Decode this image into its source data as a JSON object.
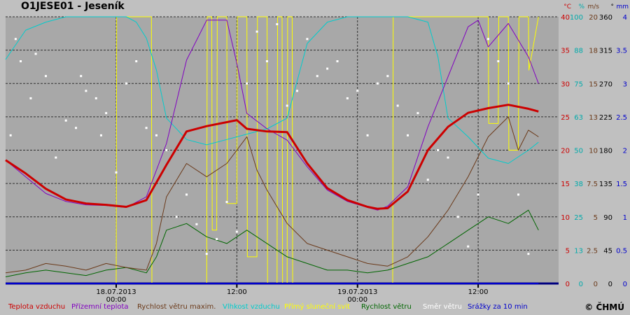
{
  "title": "O1JESE01 - Jeseník",
  "copyright": "© ČHMÚ",
  "chart_data": {
    "type": "line",
    "x_ticks": [
      {
        "t": 11,
        "label1": "18.07.2013",
        "label2": "00:00"
      },
      {
        "t": 23,
        "label1": "12:00",
        "label2": ""
      },
      {
        "t": 35,
        "label1": "19.07.2013",
        "label2": "00:00"
      },
      {
        "t": 47,
        "label1": "12:00",
        "label2": ""
      }
    ],
    "xlim": [
      0,
      55
    ],
    "axes": [
      {
        "unit": "°C",
        "color": "#cc0000",
        "ticks": [
          "0",
          "5",
          "10",
          "15",
          "20",
          "25",
          "30",
          "35",
          "40"
        ]
      },
      {
        "unit": "%",
        "color": "#00aaaa",
        "ticks": [
          "0",
          "13",
          "25",
          "38",
          "50",
          "63",
          "75",
          "88",
          "100"
        ]
      },
      {
        "unit": "m/s",
        "color": "#6b3a1a",
        "ticks": [
          "0",
          "2.5",
          "5",
          "7.5",
          "10",
          "13",
          "15",
          "18",
          "20"
        ]
      },
      {
        "unit": "°",
        "color": "#000000",
        "ticks": [
          "0",
          "45",
          "90",
          "135",
          "180",
          "225",
          "270",
          "315",
          "360"
        ]
      },
      {
        "unit": "mm",
        "color": "#0000cc",
        "ticks": [
          "0",
          "0.5",
          "1",
          "1.5",
          "2",
          "2.5",
          "3",
          "3.5",
          "4"
        ]
      }
    ],
    "series": [
      {
        "name": "Teplota vzduchu",
        "color": "#cc0000",
        "axis": "°C",
        "x": [
          0,
          2,
          4,
          6,
          8,
          10,
          12,
          14,
          16,
          18,
          20,
          22,
          23,
          24,
          26,
          28,
          30,
          32,
          34,
          36,
          37,
          38,
          40,
          42,
          44,
          46,
          48,
          50,
          52,
          53
        ],
        "y": [
          18.5,
          16.5,
          14.2,
          12.6,
          12.0,
          11.8,
          11.5,
          12.5,
          17.8,
          22.8,
          23.6,
          24.2,
          24.5,
          23.2,
          22.8,
          22.7,
          18.0,
          14.3,
          12.5,
          11.5,
          11.2,
          11.3,
          13.8,
          20.0,
          23.5,
          25.6,
          26.3,
          26.8,
          26.2,
          25.8
        ]
      },
      {
        "name": "Přízemní teplota",
        "color": "#8000c0",
        "axis": "°C",
        "x": [
          0,
          2,
          4,
          6,
          8,
          10,
          12,
          14,
          16,
          18,
          20,
          22,
          23,
          24,
          26,
          28,
          30,
          32,
          34,
          36,
          37,
          38,
          40,
          42,
          44,
          46,
          47,
          48,
          50,
          52,
          53
        ],
        "y": [
          18.5,
          16.0,
          13.5,
          12.3,
          11.8,
          11.7,
          11.4,
          13.0,
          21.0,
          33.5,
          39.5,
          39.5,
          33.0,
          25.5,
          23.2,
          21.5,
          17.5,
          14.0,
          12.3,
          11.4,
          11.0,
          11.6,
          14.5,
          23.5,
          31.0,
          38.5,
          39.5,
          35.5,
          39.0,
          34.0,
          30.0
        ]
      },
      {
        "name": "Rychlost větru maxim.",
        "color": "#6b3a1a",
        "axis": "m/s",
        "x": [
          0,
          2,
          4,
          6,
          8,
          10,
          12,
          14,
          15,
          16,
          18,
          20,
          22,
          24,
          25,
          26,
          28,
          30,
          32,
          34,
          36,
          38,
          40,
          42,
          44,
          46,
          48,
          50,
          51,
          52,
          53
        ],
        "y": [
          0.8,
          1.0,
          1.5,
          1.3,
          1.0,
          1.5,
          1.2,
          1.0,
          3.0,
          6.5,
          9.0,
          8.0,
          9.0,
          11.0,
          8.5,
          7.0,
          4.5,
          3.0,
          2.5,
          2.0,
          1.5,
          1.3,
          2.0,
          3.5,
          5.5,
          8.0,
          11.0,
          12.5,
          10.0,
          11.5,
          11.0
        ]
      },
      {
        "name": "Vlhkost vzduchu",
        "color": "#00cccc",
        "axis": "%",
        "x": [
          0,
          2,
          4,
          6,
          8,
          10,
          12,
          13,
          14,
          15,
          16,
          18,
          20,
          22,
          24,
          26,
          28,
          30,
          32,
          34,
          36,
          38,
          40,
          42,
          43,
          44,
          46,
          48,
          50,
          52,
          53
        ],
        "y": [
          84,
          95,
          98,
          100,
          100,
          100,
          100,
          98,
          92,
          80,
          62,
          54,
          52,
          54,
          56,
          58,
          62,
          90,
          98,
          100,
          100,
          100,
          100,
          98,
          85,
          62,
          55,
          47,
          45,
          50,
          53
        ]
      },
      {
        "name": "Přímý sluneční svit",
        "color": "#ffff00",
        "axis": "%",
        "x": [
          0,
          11,
          11.05,
          14.5,
          14.55,
          16,
          18,
          20,
          20.05,
          20.5,
          20.55,
          21,
          21.05,
          22,
          22.05,
          23,
          23.05,
          24,
          24.05,
          25,
          25.05,
          26,
          26.05,
          27,
          27.05,
          27.5,
          27.55,
          28,
          28.05,
          28.5,
          28.55,
          35,
          38.5,
          38.55,
          48,
          48.05,
          49,
          49.05,
          50,
          50.05,
          51,
          51.05,
          52,
          52.05,
          53
        ],
        "y": [
          0,
          0,
          100,
          100,
          0,
          0,
          0,
          0,
          100,
          100,
          20,
          20,
          100,
          100,
          30,
          30,
          100,
          100,
          10,
          10,
          100,
          100,
          0,
          0,
          100,
          100,
          0,
          0,
          100,
          100,
          0,
          0,
          0,
          100,
          100,
          60,
          60,
          100,
          100,
          50,
          50,
          100,
          100,
          80,
          100
        ]
      },
      {
        "name": "Rychlost větru",
        "color": "#006600",
        "axis": "m/s",
        "x": [
          0,
          2,
          4,
          6,
          8,
          10,
          12,
          14,
          15,
          16,
          18,
          20,
          22,
          24,
          26,
          28,
          30,
          32,
          34,
          36,
          38,
          40,
          42,
          44,
          46,
          48,
          50,
          52,
          53
        ],
        "y": [
          0.5,
          0.8,
          1.0,
          0.8,
          0.6,
          1.0,
          1.2,
          0.8,
          2.0,
          4.0,
          4.5,
          3.5,
          3.0,
          4.0,
          3.0,
          2.0,
          1.5,
          1.0,
          1.0,
          0.8,
          1.0,
          1.5,
          2.0,
          3.0,
          4.0,
          5.0,
          4.5,
          5.5,
          4.0
        ]
      },
      {
        "name": "Směr větru",
        "color": "#ffffff",
        "axis": "°",
        "type": "scatter",
        "x": [
          0.5,
          1,
          1.5,
          2.5,
          3,
          4,
          5,
          6,
          7,
          7.5,
          8,
          9,
          9.5,
          10,
          11,
          12,
          13,
          14,
          15,
          16,
          17,
          18,
          19,
          20,
          21,
          22,
          23,
          24,
          25,
          26,
          27,
          28,
          29,
          30,
          31,
          32,
          33,
          34,
          35,
          36,
          37,
          38,
          39,
          40,
          41,
          42,
          43,
          44,
          45,
          46,
          47,
          48,
          49,
          50,
          51,
          52
        ],
        "y": [
          200,
          330,
          300,
          250,
          310,
          280,
          170,
          220,
          210,
          280,
          260,
          250,
          200,
          230,
          150,
          270,
          300,
          210,
          200,
          180,
          90,
          120,
          80,
          40,
          60,
          110,
          70,
          270,
          340,
          300,
          350,
          240,
          260,
          330,
          280,
          290,
          300,
          250,
          260,
          200,
          270,
          280,
          240,
          200,
          230,
          140,
          180,
          170,
          90,
          50,
          120,
          330,
          300,
          270,
          120,
          40
        ]
      },
      {
        "name": "Srážky za 10 min",
        "color": "#0000cc",
        "axis": "mm",
        "x": [
          0,
          53
        ],
        "y": [
          0,
          0
        ]
      }
    ]
  }
}
